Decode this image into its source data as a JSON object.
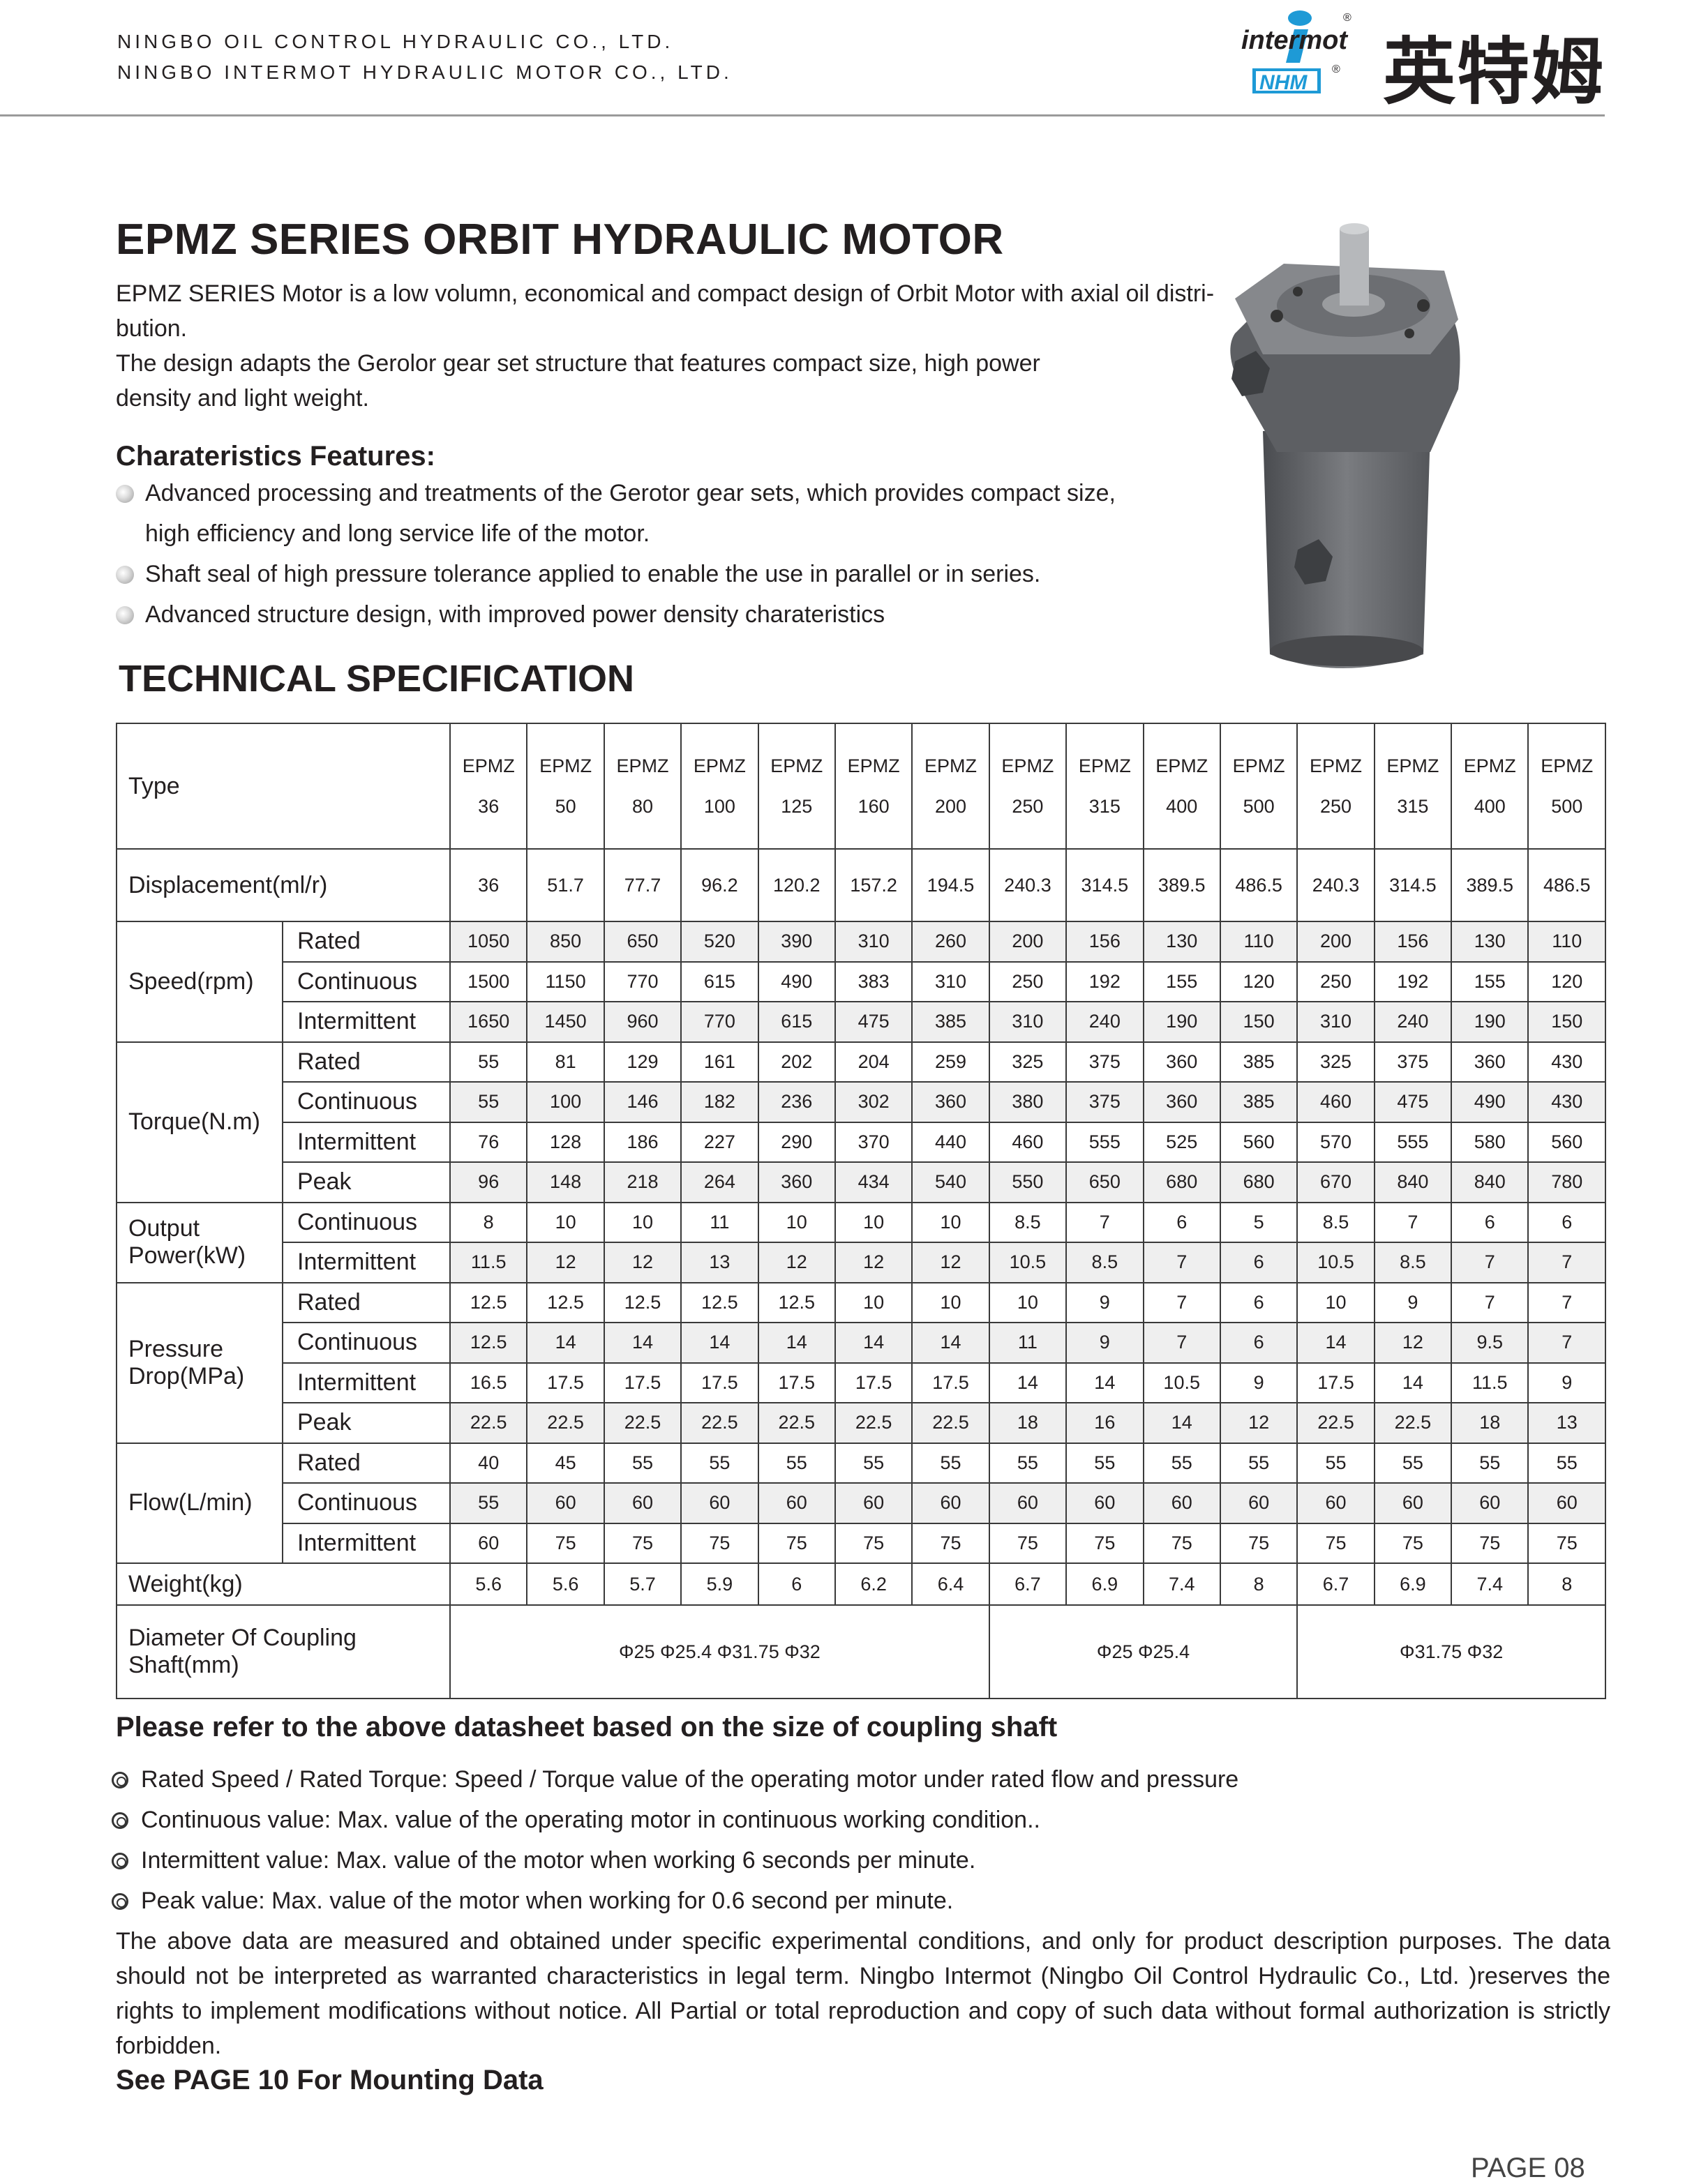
{
  "header": {
    "company_1": "NINGBO OIL CONTROL HYDRAULIC CO., LTD.",
    "company_2": "NINGBO INTERMOT HYDRAULIC MOTOR CO., LTD.",
    "logo_text": "intermot",
    "logo_sub": "NHM",
    "brand_cn": "英特姆",
    "logo_color": "#1e9ad6"
  },
  "title": "EPMZ SERIES ORBIT HYDRAULIC MOTOR",
  "intro": [
    "EPMZ SERIES Motor is a low volumn, economical and compact design of Orbit Motor with axial oil distri-",
    "bution.",
    "The design adapts the Gerolor gear set structure that features compact size, high power",
    "density and light weight."
  ],
  "features": {
    "heading": "Charateristics Features:",
    "items": [
      "Advanced processing and treatments of the Gerotor gear sets, which provides compact size,",
      "high efficiency and long service life of the motor.",
      "Shaft seal of high pressure tolerance applied to enable the use in parallel or in series.",
      "Advanced structure design, with improved power density charateristics"
    ]
  },
  "tech_title": "TECHNICAL SPECIFICATION",
  "table": {
    "type_label": "Type",
    "prefix": "EPMZ",
    "types": [
      "36",
      "50",
      "80",
      "100",
      "125",
      "160",
      "200",
      "250",
      "315",
      "400",
      "500",
      "250",
      "315",
      "400",
      "500"
    ],
    "displacement_label": "Displacement(ml/r)",
    "displacement": [
      "36",
      "51.7",
      "77.7",
      "96.2",
      "120.2",
      "157.2",
      "194.5",
      "240.3",
      "314.5",
      "389.5",
      "486.5",
      "240.3",
      "314.5",
      "389.5",
      "486.5"
    ],
    "groups": [
      {
        "label": "Speed(rpm)",
        "rows": [
          {
            "label": "Rated",
            "values": [
              "1050",
              "850",
              "650",
              "520",
              "390",
              "310",
              "260",
              "200",
              "156",
              "130",
              "110",
              "200",
              "156",
              "130",
              "110"
            ]
          },
          {
            "label": "Continuous",
            "values": [
              "1500",
              "1150",
              "770",
              "615",
              "490",
              "383",
              "310",
              "250",
              "192",
              "155",
              "120",
              "250",
              "192",
              "155",
              "120"
            ]
          },
          {
            "label": "Intermittent",
            "values": [
              "1650",
              "1450",
              "960",
              "770",
              "615",
              "475",
              "385",
              "310",
              "240",
              "190",
              "150",
              "310",
              "240",
              "190",
              "150"
            ]
          }
        ]
      },
      {
        "label": "Torque(N.m)",
        "rows": [
          {
            "label": "Rated",
            "values": [
              "55",
              "81",
              "129",
              "161",
              "202",
              "204",
              "259",
              "325",
              "375",
              "360",
              "385",
              "325",
              "375",
              "360",
              "430"
            ]
          },
          {
            "label": "Continuous",
            "values": [
              "55",
              "100",
              "146",
              "182",
              "236",
              "302",
              "360",
              "380",
              "375",
              "360",
              "385",
              "460",
              "475",
              "490",
              "430"
            ]
          },
          {
            "label": "Intermittent",
            "values": [
              "76",
              "128",
              "186",
              "227",
              "290",
              "370",
              "440",
              "460",
              "555",
              "525",
              "560",
              "570",
              "555",
              "580",
              "560"
            ]
          },
          {
            "label": "Peak",
            "values": [
              "96",
              "148",
              "218",
              "264",
              "360",
              "434",
              "540",
              "550",
              "650",
              "680",
              "680",
              "670",
              "840",
              "840",
              "780"
            ]
          }
        ]
      },
      {
        "label": "Output Power(kW)",
        "rows": [
          {
            "label": "Continuous",
            "values": [
              "8",
              "10",
              "10",
              "11",
              "10",
              "10",
              "10",
              "8.5",
              "7",
              "6",
              "5",
              "8.5",
              "7",
              "6",
              "6"
            ]
          },
          {
            "label": "Intermittent",
            "values": [
              "11.5",
              "12",
              "12",
              "13",
              "12",
              "12",
              "12",
              "10.5",
              "8.5",
              "7",
              "6",
              "10.5",
              "8.5",
              "7",
              "7"
            ]
          }
        ]
      },
      {
        "label": "Pressure Drop(MPa)",
        "rows": [
          {
            "label": "Rated",
            "values": [
              "12.5",
              "12.5",
              "12.5",
              "12.5",
              "12.5",
              "10",
              "10",
              "10",
              "9",
              "7",
              "6",
              "10",
              "9",
              "7",
              "7"
            ]
          },
          {
            "label": "Continuous",
            "values": [
              "12.5",
              "14",
              "14",
              "14",
              "14",
              "14",
              "14",
              "11",
              "9",
              "7",
              "6",
              "14",
              "12",
              "9.5",
              "7"
            ]
          },
          {
            "label": "Intermittent",
            "values": [
              "16.5",
              "17.5",
              "17.5",
              "17.5",
              "17.5",
              "17.5",
              "17.5",
              "14",
              "14",
              "10.5",
              "9",
              "17.5",
              "14",
              "11.5",
              "9"
            ]
          },
          {
            "label": "Peak",
            "values": [
              "22.5",
              "22.5",
              "22.5",
              "22.5",
              "22.5",
              "22.5",
              "22.5",
              "18",
              "16",
              "14",
              "12",
              "22.5",
              "22.5",
              "18",
              "13"
            ]
          }
        ]
      },
      {
        "label": "Flow(L/min)",
        "rows": [
          {
            "label": "Rated",
            "values": [
              "40",
              "45",
              "55",
              "55",
              "55",
              "55",
              "55",
              "55",
              "55",
              "55",
              "55",
              "55",
              "55",
              "55",
              "55"
            ]
          },
          {
            "label": "Continuous",
            "values": [
              "55",
              "60",
              "60",
              "60",
              "60",
              "60",
              "60",
              "60",
              "60",
              "60",
              "60",
              "60",
              "60",
              "60",
              "60"
            ]
          },
          {
            "label": "Intermittent",
            "values": [
              "60",
              "75",
              "75",
              "75",
              "75",
              "75",
              "75",
              "75",
              "75",
              "75",
              "75",
              "75",
              "75",
              "75",
              "75"
            ]
          }
        ]
      }
    ],
    "weight_label": "Weight(kg)",
    "weight": [
      "5.6",
      "5.6",
      "5.7",
      "5.9",
      "6",
      "6.2",
      "6.4",
      "6.7",
      "6.9",
      "7.4",
      "8",
      "6.7",
      "6.9",
      "7.4",
      "8"
    ],
    "shaft_label": "Diameter Of Coupling Shaft(mm)",
    "shaft": [
      {
        "text": "Φ25 Φ25.4 Φ31.75 Φ32",
        "span": 7
      },
      {
        "text": "Φ25  Φ25.4",
        "span": 4
      },
      {
        "text": "Φ31.75 Φ32",
        "span": 4
      }
    ]
  },
  "refer": "Please refer to the above datasheet based on the size of coupling shaft",
  "notes": [
    "Rated Speed / Rated Torque: Speed / Torque value of the operating motor under rated flow and pressure",
    "Continuous value: Max. value of the operating motor in continuous working condition..",
    "Intermittent value: Max. value of the motor when working 6 seconds per minute.",
    "Peak value: Max. value of the motor when working for 0.6 second per minute."
  ],
  "disclaimer": "The above data are measured and obtained under specific experimental conditions, and only for product description purposes. The data should not be interpreted as warranted characteristics in legal term. Ningbo Intermot (Ningbo Oil Control Hydraulic Co., Ltd. )reserves the rights to implement modifications without notice. All Partial or total reproduction and copy of such data without formal authorization is strictly forbidden.",
  "see_page": "See PAGE 10 For Mounting Data",
  "page_label": "PAGE 08"
}
